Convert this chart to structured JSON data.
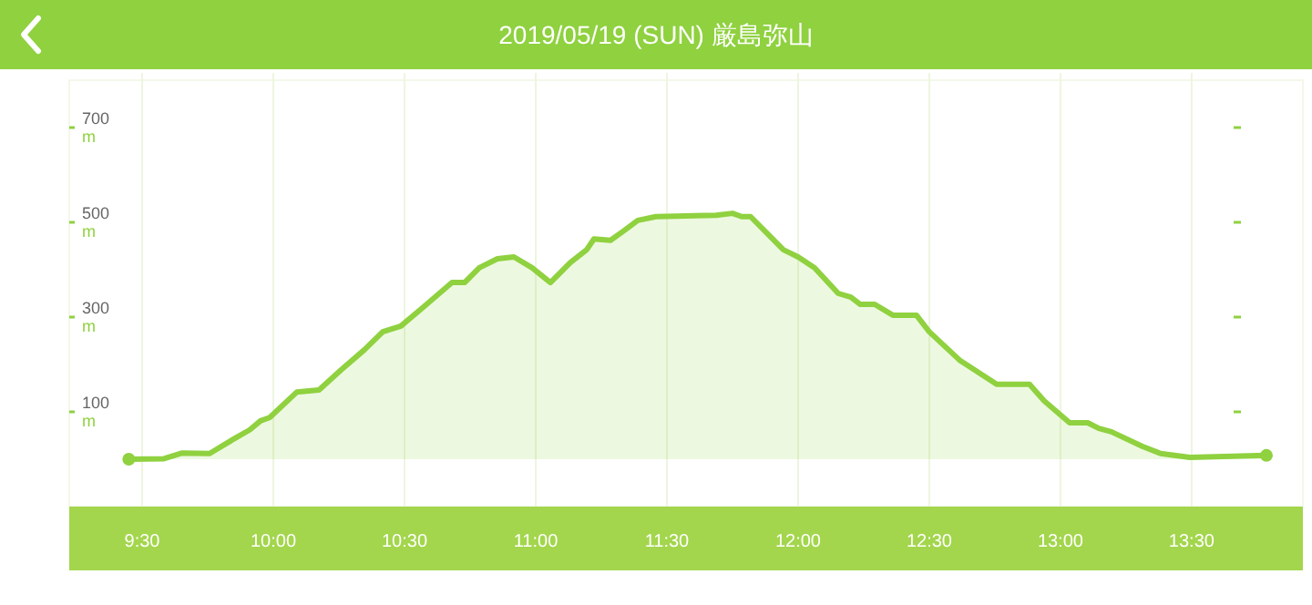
{
  "chart_data": {
    "type": "area",
    "title": "2019/05/19 (SUN) 厳島弥山",
    "x": [
      9.449,
      9.583,
      9.653,
      9.757,
      9.847,
      9.91,
      9.951,
      9.986,
      10.09,
      10.174,
      10.257,
      10.347,
      10.417,
      10.486,
      10.576,
      10.681,
      10.729,
      10.785,
      10.854,
      10.917,
      10.986,
      11.056,
      11.132,
      11.194,
      11.222,
      11.285,
      11.333,
      11.389,
      11.458,
      11.688,
      11.75,
      11.785,
      11.819,
      11.944,
      12.0,
      12.063,
      12.153,
      12.201,
      12.236,
      12.292,
      12.361,
      12.451,
      12.5,
      12.618,
      12.674,
      12.757,
      12.882,
      12.938,
      13.035,
      13.104,
      13.146,
      13.194,
      13.313,
      13.382,
      13.493,
      13.785
    ],
    "series": [
      {
        "color": "#8fd13f",
        "values": [
          0,
          1,
          13,
          12,
          42,
          62,
          81,
          88,
          142,
          146,
          188,
          231,
          269,
          281,
          323,
          373,
          373,
          404,
          423,
          427,
          404,
          373,
          415,
          442,
          465,
          462,
          481,
          504,
          512,
          515,
          519,
          512,
          512,
          442,
          427,
          404,
          350,
          342,
          327,
          327,
          304,
          304,
          269,
          208,
          188,
          158,
          158,
          123,
          77,
          77,
          65,
          58,
          27,
          12,
          4,
          8
        ]
      }
    ],
    "xlim": [
      9.222,
      13.924
    ],
    "xticks": [
      {
        "value": 9.5,
        "label": "9:30"
      },
      {
        "value": 10,
        "label": "10:00"
      },
      {
        "value": 10.5,
        "label": "10:30"
      },
      {
        "value": 11,
        "label": "11:00"
      },
      {
        "value": 11.5,
        "label": "11:30"
      },
      {
        "value": 12,
        "label": "12:00"
      },
      {
        "value": 12.5,
        "label": "12:30"
      },
      {
        "value": 13,
        "label": "13:00"
      },
      {
        "value": 13.5,
        "label": "13:30"
      }
    ],
    "ylim": [
      -100,
      800
    ],
    "yticks": [
      {
        "value": 100,
        "label": "100 m"
      },
      {
        "value": 300,
        "label": "300 m"
      },
      {
        "value": 500,
        "label": "500 m"
      },
      {
        "value": 700,
        "label": "700 m"
      }
    ],
    "grid": "x"
  }
}
